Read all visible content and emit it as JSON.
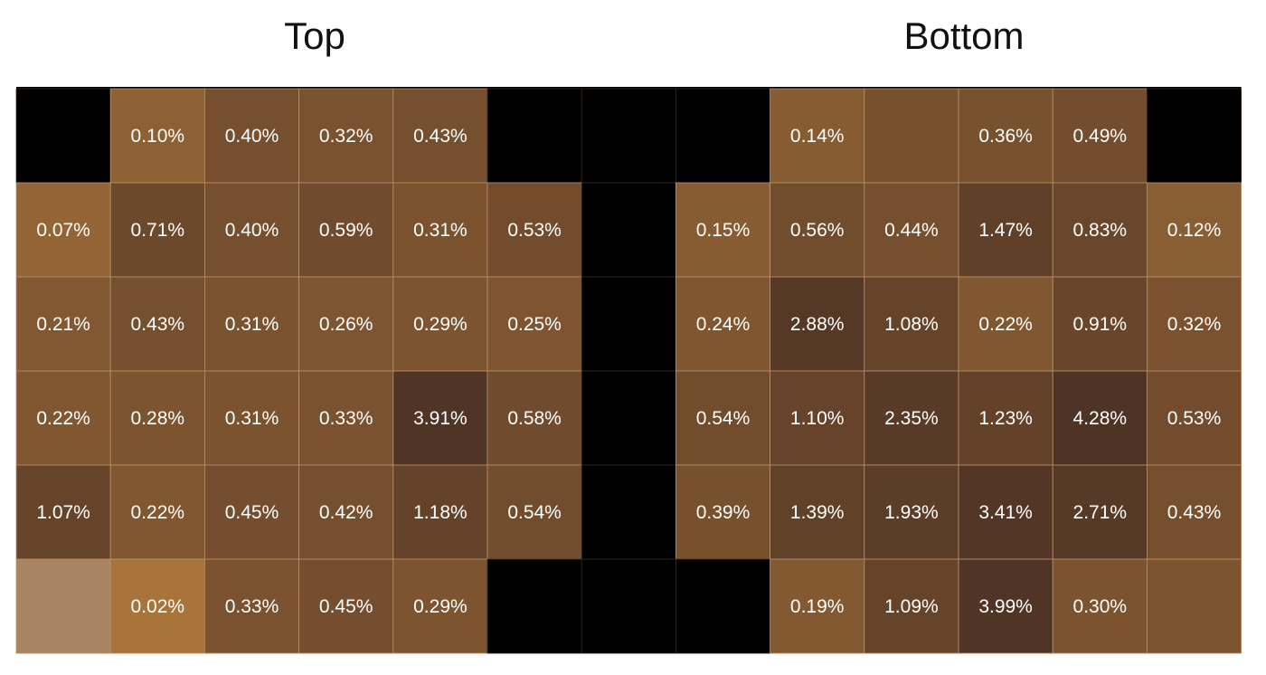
{
  "chart_data": {
    "type": "heatmap",
    "titles": [
      "Top",
      "Bottom"
    ],
    "columns": 13,
    "rows": 6,
    "legend": false,
    "grid": true,
    "colors": {
      "masked": "#000000",
      "low": "#a8743a",
      "high": "#4f3325",
      "faded": "#a88462",
      "gridline": "#b8926a",
      "label": "#ffffff"
    },
    "cells": [
      [
        {
          "label": "",
          "masked": true
        },
        {
          "label": "0.10%",
          "value": 0.1
        },
        {
          "label": "0.40%",
          "value": 0.4
        },
        {
          "label": "0.32%",
          "value": 0.32
        },
        {
          "label": "0.43%",
          "value": 0.43
        },
        {
          "label": "",
          "masked": true
        },
        {
          "label": "",
          "masked": true
        },
        {
          "label": "",
          "masked": true
        },
        {
          "label": "0.14%",
          "value": 0.14
        },
        {
          "label": "",
          "shade": 0.55
        },
        {
          "label": "0.36%",
          "value": 0.36
        },
        {
          "label": "0.49%",
          "value": 0.49
        },
        {
          "label": "",
          "masked": true
        }
      ],
      [
        {
          "label": "0.07%",
          "value": 0.07
        },
        {
          "label": "0.71%",
          "value": 0.71
        },
        {
          "label": "0.40%",
          "value": 0.4
        },
        {
          "label": "0.59%",
          "value": 0.59
        },
        {
          "label": "0.31%",
          "value": 0.31
        },
        {
          "label": "0.53%",
          "value": 0.53
        },
        {
          "label": "",
          "masked": true
        },
        {
          "label": "0.15%",
          "value": 0.15
        },
        {
          "label": "0.56%",
          "value": 0.56
        },
        {
          "label": "0.44%",
          "value": 0.44
        },
        {
          "label": "1.47%",
          "value": 1.47
        },
        {
          "label": "0.83%",
          "value": 0.83
        },
        {
          "label": "0.12%",
          "value": 0.12
        }
      ],
      [
        {
          "label": "0.21%",
          "value": 0.21
        },
        {
          "label": "0.43%",
          "value": 0.43
        },
        {
          "label": "0.31%",
          "value": 0.31
        },
        {
          "label": "0.26%",
          "value": 0.26
        },
        {
          "label": "0.29%",
          "value": 0.29
        },
        {
          "label": "0.25%",
          "value": 0.25
        },
        {
          "label": "",
          "masked": true
        },
        {
          "label": "0.24%",
          "value": 0.24
        },
        {
          "label": "2.88%",
          "value": 2.88
        },
        {
          "label": "1.08%",
          "value": 1.08
        },
        {
          "label": "0.22%",
          "value": 0.22
        },
        {
          "label": "0.91%",
          "value": 0.91
        },
        {
          "label": "0.32%",
          "value": 0.32
        }
      ],
      [
        {
          "label": "0.22%",
          "value": 0.22
        },
        {
          "label": "0.28%",
          "value": 0.28
        },
        {
          "label": "0.31%",
          "value": 0.31
        },
        {
          "label": "0.33%",
          "value": 0.33
        },
        {
          "label": "3.91%",
          "value": 3.91
        },
        {
          "label": "0.58%",
          "value": 0.58
        },
        {
          "label": "",
          "masked": true
        },
        {
          "label": "0.54%",
          "value": 0.54
        },
        {
          "label": "1.10%",
          "value": 1.1
        },
        {
          "label": "2.35%",
          "value": 2.35
        },
        {
          "label": "1.23%",
          "value": 1.23
        },
        {
          "label": "4.28%",
          "value": 4.28
        },
        {
          "label": "0.53%",
          "value": 0.53
        }
      ],
      [
        {
          "label": "1.07%",
          "value": 1.07
        },
        {
          "label": "0.22%",
          "value": 0.22
        },
        {
          "label": "0.45%",
          "value": 0.45
        },
        {
          "label": "0.42%",
          "value": 0.42
        },
        {
          "label": "1.18%",
          "value": 1.18
        },
        {
          "label": "0.54%",
          "value": 0.54
        },
        {
          "label": "",
          "masked": true
        },
        {
          "label": "0.39%",
          "value": 0.39
        },
        {
          "label": "1.39%",
          "value": 1.39
        },
        {
          "label": "1.93%",
          "value": 1.93
        },
        {
          "label": "3.41%",
          "value": 3.41
        },
        {
          "label": "2.71%",
          "value": 2.71
        },
        {
          "label": "0.43%",
          "value": 0.43
        }
      ],
      [
        {
          "label": "",
          "faded": true
        },
        {
          "label": "0.02%",
          "value": 0.02
        },
        {
          "label": "0.33%",
          "value": 0.33
        },
        {
          "label": "0.45%",
          "value": 0.45
        },
        {
          "label": "0.29%",
          "value": 0.29
        },
        {
          "label": "",
          "masked": true
        },
        {
          "label": "",
          "masked": true
        },
        {
          "label": "",
          "masked": true
        },
        {
          "label": "0.19%",
          "value": 0.19
        },
        {
          "label": "1.09%",
          "value": 1.09
        },
        {
          "label": "3.99%",
          "value": 3.99
        },
        {
          "label": "0.30%",
          "value": 0.3
        },
        {
          "label": "",
          "shade": 0.5
        }
      ]
    ]
  }
}
